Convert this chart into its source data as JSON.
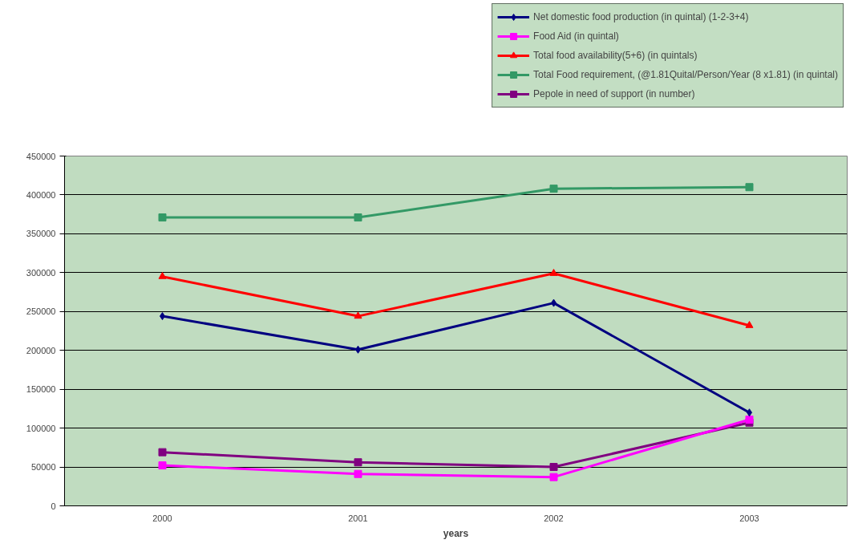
{
  "chart_data": {
    "type": "line",
    "xlabel": "years",
    "categories": [
      "2000",
      "2001",
      "2002",
      "2003"
    ],
    "series": [
      {
        "name": "Net domestic food production (in quintal) (1-2-3+4)",
        "color": "#000080",
        "marker": "diamond",
        "values": [
          244000,
          201000,
          261000,
          120000
        ]
      },
      {
        "name": "Food Aid (in quintal)",
        "color": "#ff00ff",
        "marker": "square",
        "values": [
          52000,
          41000,
          37000,
          111000
        ]
      },
      {
        "name": "Total food availability(5+6) (in quintals)",
        "color": "#ff0000",
        "marker": "triangle",
        "values": [
          295000,
          244000,
          299000,
          232000
        ]
      },
      {
        "name": "Total Food requirement, (@1.81Quital/Person/Year (8 x1.81) (in quintal)",
        "color": "#339966",
        "marker": "square",
        "values": [
          371000,
          371000,
          408000,
          410000
        ]
      },
      {
        "name": "Pepole in need of support (in number)",
        "color": "#800080",
        "marker": "square",
        "values": [
          69000,
          56000,
          50000,
          107000
        ]
      }
    ],
    "ylim": [
      0,
      450000
    ],
    "yticks": [
      0,
      50000,
      100000,
      150000,
      200000,
      250000,
      300000,
      350000,
      400000,
      450000
    ],
    "grid": "y",
    "legend": "top right"
  }
}
